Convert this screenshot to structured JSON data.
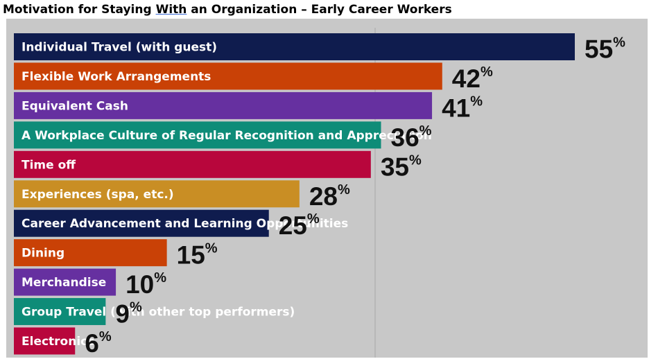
{
  "chart_data": {
    "type": "bar",
    "orientation": "horizontal",
    "title_parts": [
      "Motivation for Staying ",
      "With",
      " an Organization – Early Career Workers"
    ],
    "unit": "%",
    "xlim": [
      0,
      55
    ],
    "categories": [
      "Individual Travel (with guest)",
      "Flexible Work Arrangements",
      "Equivalent Cash",
      "A Workplace Culture of Regular Recognition and Appreciation",
      "Time off",
      "Experiences (spa, etc.)",
      "Career Advancement and Learning Opportunities",
      "Dining",
      "Merchandise",
      "Group Travel (with other top performers)",
      "Electronics"
    ],
    "values": [
      55,
      42,
      41,
      36,
      35,
      28,
      25,
      15,
      10,
      9,
      6
    ],
    "colors": [
      "#0f1c4e",
      "#c94106",
      "#6630a0",
      "#0e8c78",
      "#b8063c",
      "#c98e24",
      "#0f1c4e",
      "#c94106",
      "#6630a0",
      "#0e8c78",
      "#b8063c"
    ],
    "label_colors": [
      "#ffffff",
      "#ffffff",
      "#ffffff",
      "#ffffff",
      "#ffffff",
      "#2b1a00",
      "#ffffff",
      "#ffffff",
      "#ffffff",
      "#ffffff",
      "#ffffff"
    ],
    "background": "#c8c8c8",
    "grid": false
  }
}
